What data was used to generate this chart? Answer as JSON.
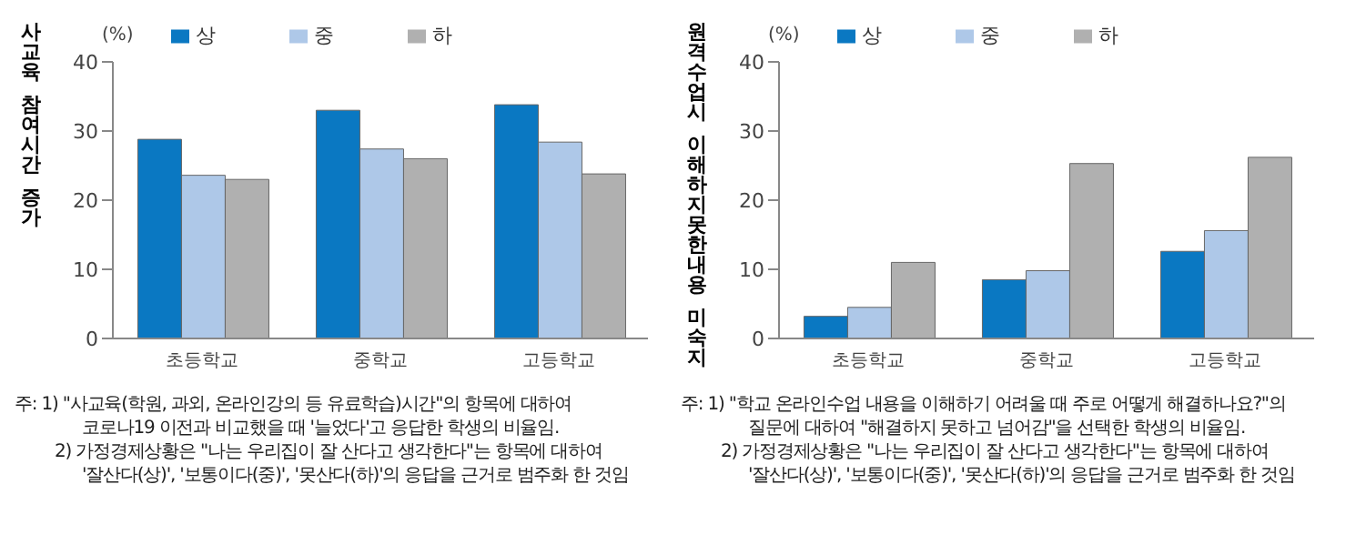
{
  "chart_data": [
    {
      "type": "bar",
      "ylabel": "사교육 참여시간 증가",
      "categories": [
        "초등학교",
        "중학교",
        "고등학교"
      ],
      "series": [
        {
          "name": "상",
          "color": "#0a78c2",
          "values": [
            28.8,
            33.0,
            33.8
          ]
        },
        {
          "name": "중",
          "color": "#aec8e8",
          "values": [
            23.6,
            27.4,
            28.4
          ]
        },
        {
          "name": "하",
          "color": "#b0b0b0",
          "values": [
            23.0,
            26.0,
            23.8
          ]
        }
      ],
      "ylim": [
        0,
        40
      ],
      "yticks": [
        0,
        10,
        20,
        30,
        40
      ],
      "grid": false,
      "legend": "top",
      "annotations": [
        "(%)",
        "주: 1) \"사교육(학원, 과외, 온라인강의 등 유료학습)시간\"의 항목에 대하여",
        "코로나19 이전과 비교했을 때 '늘었다'고 응답한 학생의 비율임.",
        "2) 가정경제상황은 \"나는 우리집이 잘 산다고 생각한다\"는 항목에 대하여",
        "'잘산다(상)', '보통이다(중)', '못산다(하)'의 응답을 근거로 범주화 한 것임"
      ]
    },
    {
      "type": "bar",
      "ylabel": "원격수업시 이해하지못한내용 미숙지",
      "categories": [
        "초등학교",
        "중학교",
        "고등학교"
      ],
      "series": [
        {
          "name": "상",
          "color": "#0a78c2",
          "values": [
            3.2,
            8.5,
            12.6
          ]
        },
        {
          "name": "중",
          "color": "#aec8e8",
          "values": [
            4.5,
            9.8,
            15.6
          ]
        },
        {
          "name": "하",
          "color": "#b0b0b0",
          "values": [
            11.0,
            25.3,
            26.2
          ]
        }
      ],
      "ylim": [
        0,
        40
      ],
      "yticks": [
        0,
        10,
        20,
        30,
        40
      ],
      "grid": false,
      "legend": "top",
      "annotations": [
        "(%)",
        "주: 1) \"학교 온라인수업 내용을 이해하기 어려울 때 주로 어떻게 해결하나요?\"의",
        "질문에 대하여 \"해결하지 못하고 넘어감\"을 선택한 학생의 비율임.",
        "2) 가정경제상황은 \"나는 우리집이 잘 산다고 생각한다\"는 항목에 대하여",
        "'잘산다(상)', '보통이다(중)', '못산다(하)'의 응답을 근거로 범주화 한 것임"
      ]
    }
  ]
}
